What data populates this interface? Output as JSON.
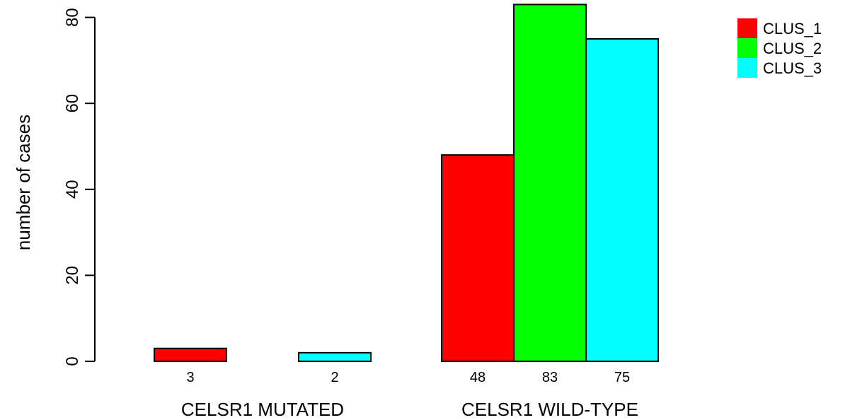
{
  "chart_data": {
    "type": "bar",
    "ylabel": "number of cases",
    "ylim": [
      0,
      84
    ],
    "yticks": [
      0,
      20,
      40,
      60,
      80
    ],
    "categories": [
      "CELSR1 MUTATED",
      "CELSR1 WILD-TYPE"
    ],
    "series": [
      {
        "name": "CLUS_1",
        "color": "#ff0000",
        "values": [
          3,
          48
        ]
      },
      {
        "name": "CLUS_2",
        "color": "#00ff00",
        "values": [
          0,
          83
        ]
      },
      {
        "name": "CLUS_3",
        "color": "#00ffff",
        "values": [
          2,
          75
        ]
      }
    ],
    "bar_labels": [
      [
        "3",
        "",
        "2"
      ],
      [
        "48",
        "83",
        "75"
      ]
    ],
    "legend_position": "top-right",
    "grid": false
  }
}
